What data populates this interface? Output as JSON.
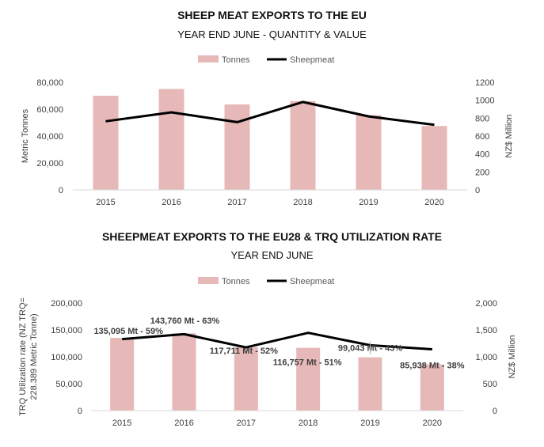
{
  "chart_data": [
    {
      "type": "bar",
      "title": "SHEEP MEAT EXPORTS TO THE EU",
      "subtitle": "YEAR END JUNE - QUANTITY & VALUE",
      "categories": [
        "2015",
        "2016",
        "2017",
        "2018",
        "2019",
        "2020"
      ],
      "series": [
        {
          "name": "Tonnes",
          "type": "bar",
          "axis": "left",
          "color": "#e6b8b7",
          "values": [
            70000,
            75000,
            63500,
            66000,
            55500,
            47500
          ]
        },
        {
          "name": "Sheepmeat",
          "type": "line",
          "axis": "right",
          "color": "#000000",
          "values": [
            765,
            865,
            755,
            980,
            820,
            725
          ]
        }
      ],
      "ylabel": "Metric Tonnes",
      "y2label": "NZ$ Million",
      "ylim": [
        0,
        80000
      ],
      "y2lim": [
        0,
        1200
      ],
      "yticks": [
        0,
        20000,
        40000,
        60000,
        80000
      ],
      "ytick_labels": [
        "0",
        "20,000",
        "40,000",
        "60,000",
        "80,000"
      ],
      "y2ticks": [
        0,
        200,
        400,
        600,
        800,
        1000,
        1200
      ],
      "y2tick_labels": [
        "0",
        "200",
        "400",
        "600",
        "800",
        "1000",
        "1200"
      ],
      "legend": "top",
      "grid": false
    },
    {
      "type": "bar",
      "title": "SHEEPMEAT EXPORTS TO THE EU28 & TRQ UTILIZATION RATE",
      "subtitle": "YEAR END JUNE",
      "categories": [
        "2015",
        "2016",
        "2017",
        "2018",
        "2019",
        "2020"
      ],
      "series": [
        {
          "name": "Tonnes",
          "type": "bar",
          "axis": "left",
          "color": "#e6b8b7",
          "values": [
            135095,
            143760,
            117711,
            116757,
            99043,
            85938
          ]
        },
        {
          "name": "Sheepmeat",
          "type": "line",
          "axis": "right",
          "color": "#000000",
          "values": [
            1330,
            1420,
            1175,
            1445,
            1215,
            1140
          ]
        }
      ],
      "data_labels": [
        "135,095 Mt - 59%",
        "143,760 Mt - 63%",
        "117,711 Mt - 52%",
        "116,757 Mt - 51%",
        "99,043 Mt - 43%",
        "85,938 Mt - 38%"
      ],
      "ylabel_lines": [
        "TRQ Utilization rate (NZ TRQ=",
        "228.389 Metric Tonne)"
      ],
      "y2label": "NZ$ Million",
      "ylim": [
        0,
        200000
      ],
      "y2lim": [
        0,
        2000
      ],
      "yticks": [
        0,
        50000,
        100000,
        150000,
        200000
      ],
      "ytick_labels": [
        "0",
        "50,000",
        "100,000",
        "150,000",
        "200,000"
      ],
      "y2ticks": [
        0,
        500,
        1000,
        1500,
        2000
      ],
      "y2tick_labels": [
        "0",
        "500",
        "1,000",
        "1,500",
        "2,000"
      ],
      "legend": "top",
      "grid": false
    }
  ]
}
